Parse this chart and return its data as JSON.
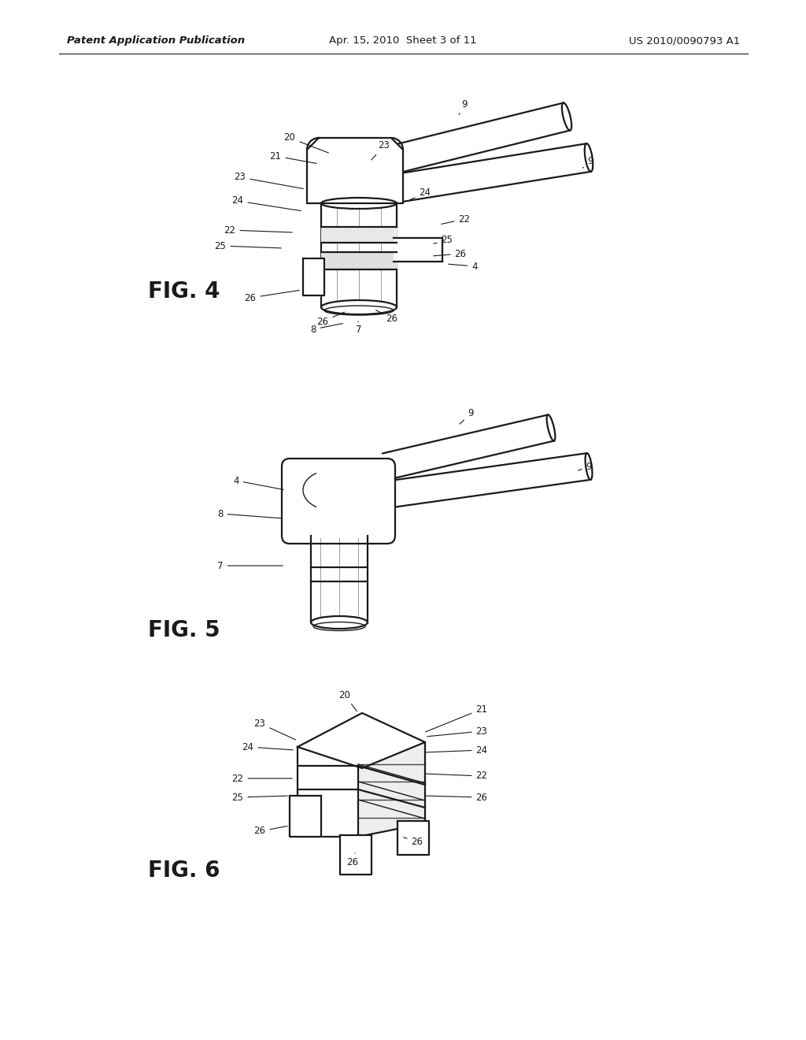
{
  "bg_color": "#ffffff",
  "line_color": "#1a1a1a",
  "header_left": "Patent Application Publication",
  "header_center": "Apr. 15, 2010  Sheet 3 of 11",
  "header_right": "US 2010/0090793 A1",
  "fig4_label": "FIG. 4",
  "fig5_label": "FIG. 5",
  "fig6_label": "FIG. 6"
}
